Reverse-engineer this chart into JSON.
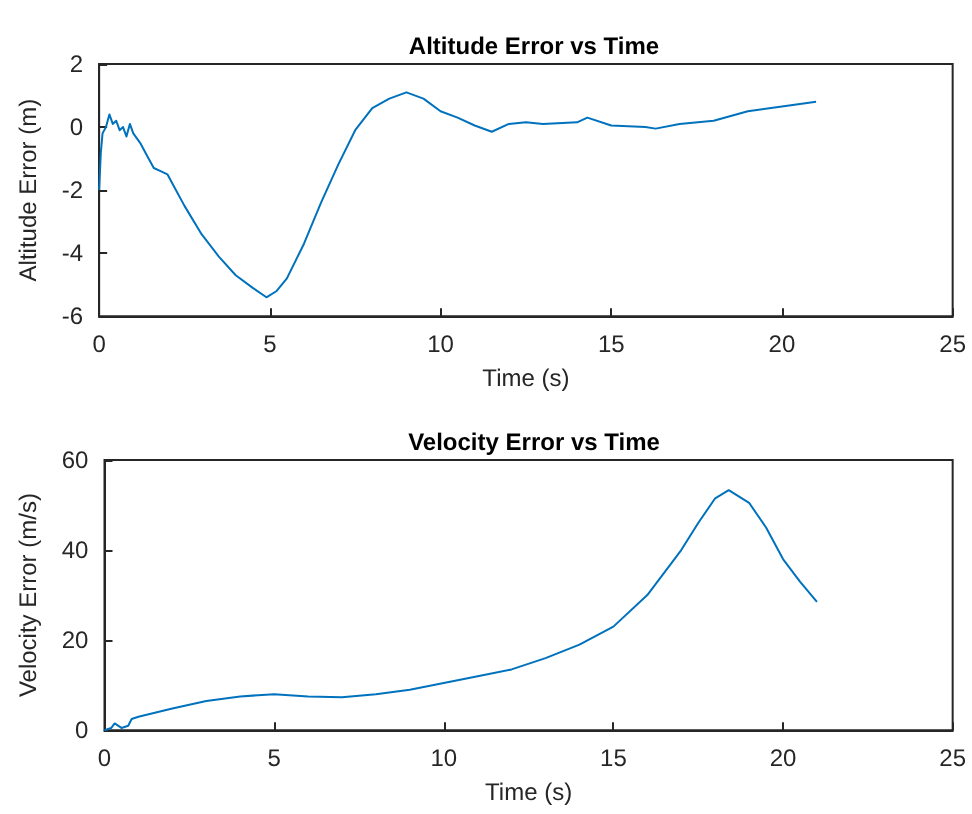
{
  "chart_data": [
    {
      "type": "line",
      "title": "Altitude Error vs Time",
      "xlabel": "Time (s)",
      "ylabel": "Altitude Error (m)",
      "color": "#0072bd",
      "marker": "none",
      "x": [
        0,
        0.05,
        0.1,
        0.2,
        0.3,
        0.4,
        0.5,
        0.6,
        0.7,
        0.8,
        0.9,
        1.0,
        1.2,
        1.4,
        1.6,
        1.8,
        2.0,
        2.2,
        2.5,
        3.0,
        3.5,
        4.0,
        4.5,
        4.9,
        5.2,
        5.5,
        6.0,
        6.5,
        7.0,
        7.5,
        8.0,
        8.5,
        9.0,
        9.5,
        10,
        10.5,
        11,
        11.5,
        12,
        12.5,
        13,
        14,
        14.3,
        15,
        16,
        16.3,
        17,
        18,
        19,
        20,
        21
      ],
      "values": [
        -2,
        -0.8,
        -0.2,
        0,
        0.4,
        0.1,
        0.2,
        -0.1,
        0,
        -0.3,
        0.1,
        -0.2,
        -0.5,
        -0.9,
        -1.3,
        -1.4,
        -1.5,
        -1.9,
        -2.5,
        -3.4,
        -4.1,
        -4.7,
        -5.1,
        -5.4,
        -5.2,
        -4.8,
        -3.7,
        -2.4,
        -1.2,
        -0.1,
        0.6,
        0.9,
        1.1,
        0.9,
        0.5,
        0.3,
        0.05,
        -0.15,
        0.1,
        0.15,
        0.1,
        0.15,
        0.3,
        0.05,
        0,
        -0.05,
        0.1,
        0.2,
        0.5,
        0.65,
        0.8
      ],
      "xlim": [
        0,
        25
      ],
      "xticks": [
        0,
        5,
        10,
        15,
        20,
        25
      ],
      "ylim": [
        -6,
        2
      ],
      "yticks": [
        -6,
        -4,
        -2,
        0,
        2
      ]
    },
    {
      "type": "line",
      "title": "Velocity Error vs Time",
      "xlabel": "Time (s)",
      "ylabel": "Velocity Error (m/s)",
      "color": "#0072bd",
      "marker": "none",
      "x": [
        0,
        0.2,
        0.3,
        0.5,
        0.7,
        0.8,
        1,
        2,
        3,
        4,
        5,
        6,
        7,
        8,
        9,
        10,
        11,
        12,
        13,
        14,
        15,
        16,
        17,
        17.5,
        18,
        18.4,
        19,
        19.5,
        20,
        20.5,
        21
      ],
      "values": [
        0,
        0.5,
        1.5,
        0.5,
        1,
        2.5,
        3,
        4.8,
        6.5,
        7.5,
        8,
        7.5,
        7.3,
        8,
        9,
        10.5,
        12,
        13.5,
        16,
        19,
        23,
        30,
        40,
        46,
        51.5,
        53.3,
        50.5,
        45,
        38,
        33,
        28.5
      ],
      "xlim": [
        0,
        25
      ],
      "xticks": [
        0,
        5,
        10,
        15,
        20,
        25
      ],
      "ylim": [
        0,
        60
      ],
      "yticks": [
        0,
        20,
        40,
        60
      ]
    }
  ]
}
